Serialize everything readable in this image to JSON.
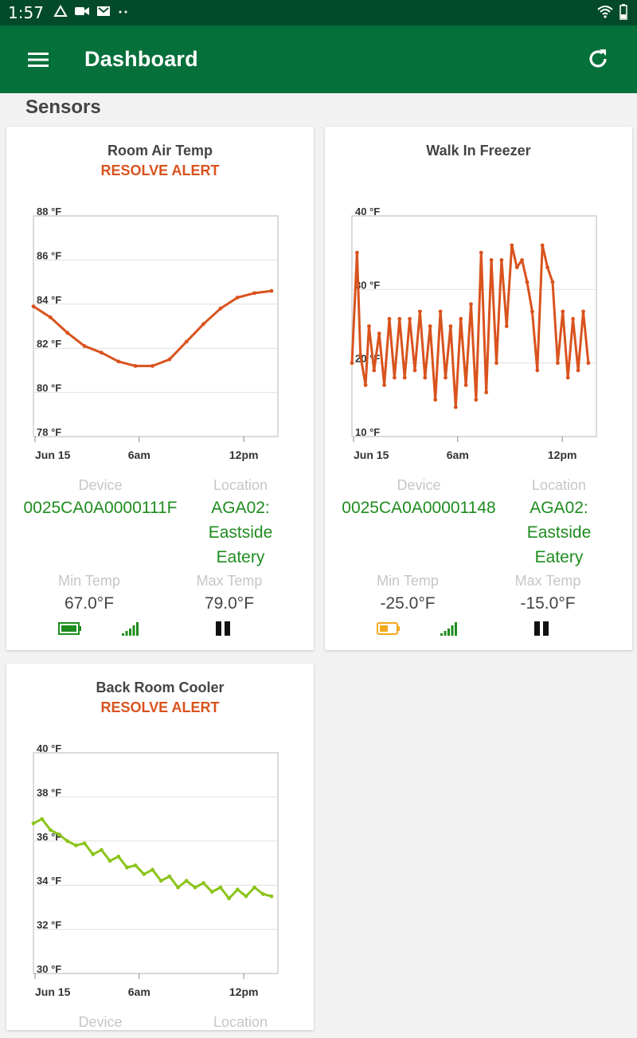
{
  "status_bar": {
    "time": "1:57"
  },
  "header": {
    "title": "Dashboard"
  },
  "section": {
    "title": "Sensors"
  },
  "labels": {
    "device": "Device",
    "location": "Location",
    "min_temp": "Min Temp",
    "max_temp": "Max Temp"
  },
  "sensors": [
    {
      "name": "Room Air Temp",
      "alert": "RESOLVE ALERT",
      "device": "0025CA0A0000111F",
      "location_lines": [
        "AGA02:",
        "Eastside",
        "Eatery"
      ],
      "min_temp": "67.0°F",
      "max_temp": "79.0°F",
      "battery": "full",
      "battery_color": "#1e8c1e"
    },
    {
      "name": "Walk In Freezer",
      "alert": "",
      "device": "0025CA0A00001148",
      "location_lines": [
        "AGA02:",
        "Eastside",
        "Eatery"
      ],
      "min_temp": "-25.0°F",
      "max_temp": "-15.0°F",
      "battery": "half",
      "battery_color": "#f2a81d"
    },
    {
      "name": "Back Room Cooler",
      "alert": "RESOLVE ALERT",
      "device": "",
      "location_lines": [],
      "min_temp": "",
      "max_temp": "",
      "battery": "",
      "battery_color": ""
    }
  ],
  "colors": {
    "status_bar": "#034a2a",
    "app_bar": "#06703a",
    "alert": "#d9531e",
    "green_value": "#1e8c1e",
    "series_orange": "#d9531e",
    "series_lime": "#8bc41a"
  },
  "chart_data": [
    {
      "type": "line",
      "title": "Room Air Temp",
      "x_ticks": [
        "Jun 15",
        "6am",
        "12pm"
      ],
      "y_ticks": [
        "88 °F",
        "86 °F",
        "84 °F",
        "82 °F",
        "80 °F",
        "78 °F"
      ],
      "ylim": [
        78,
        88
      ],
      "x_range_hours": [
        0,
        14
      ],
      "series": [
        {
          "color": "#d9531e",
          "x": [
            0,
            1,
            2,
            3,
            4,
            5,
            6,
            7,
            8,
            9,
            10,
            11,
            12,
            13,
            14
          ],
          "y": [
            83.9,
            83.4,
            82.7,
            82.1,
            81.8,
            81.4,
            81.2,
            81.2,
            81.5,
            82.3,
            83.1,
            83.8,
            84.3,
            84.5,
            84.6
          ]
        }
      ]
    },
    {
      "type": "line",
      "title": "Walk In Freezer",
      "x_ticks": [
        "Jun 15",
        "6am",
        "12pm"
      ],
      "y_ticks": [
        "40 °F",
        "30 °F",
        "20 °F",
        "10 °F"
      ],
      "ylim": [
        10,
        40
      ],
      "x_range_hours": [
        0,
        14
      ],
      "series": [
        {
          "color": "#d9531e",
          "x": [
            0,
            0.3,
            0.5,
            0.8,
            1.0,
            1.3,
            1.6,
            1.9,
            2.2,
            2.5,
            2.8,
            3.1,
            3.4,
            3.7,
            4.0,
            4.3,
            4.6,
            4.9,
            5.2,
            5.5,
            5.8,
            6.1,
            6.4,
            6.7,
            7.0,
            7.3,
            7.6,
            7.9,
            8.2,
            8.5,
            8.8,
            9.1,
            9.4,
            9.7,
            10.0,
            10.3,
            10.6,
            10.9,
            11.2,
            11.5,
            11.8,
            12.1,
            12.4,
            12.7,
            13.0,
            13.3,
            13.6,
            13.9
          ],
          "y": [
            20,
            35,
            21,
            17,
            25,
            19,
            24,
            17,
            26,
            18,
            26,
            18,
            26,
            19,
            27,
            18,
            25,
            15,
            27,
            18,
            25,
            14,
            26,
            17,
            28,
            15,
            35,
            16,
            34,
            20,
            34,
            25,
            36,
            33,
            34,
            31,
            27,
            19,
            36,
            33,
            31,
            20,
            27,
            18,
            26,
            19,
            27,
            20
          ]
        }
      ]
    },
    {
      "type": "line",
      "title": "Back Room Cooler",
      "x_ticks": [
        "Jun 15",
        "6am",
        "12pm"
      ],
      "y_ticks": [
        "40 °F",
        "38 °F",
        "36 °F",
        "34 °F",
        "32 °F",
        "30 °F"
      ],
      "ylim": [
        30,
        40
      ],
      "x_range_hours": [
        0,
        14
      ],
      "series": [
        {
          "color": "#8bc41a",
          "x": [
            0,
            0.5,
            1,
            1.5,
            2,
            2.5,
            3,
            3.5,
            4,
            4.5,
            5,
            5.5,
            6,
            6.5,
            7,
            7.5,
            8,
            8.5,
            9,
            9.5,
            10,
            10.5,
            11,
            11.5,
            12,
            12.5,
            13,
            13.5,
            14
          ],
          "y": [
            36.8,
            37.0,
            36.5,
            36.3,
            36.0,
            35.8,
            35.9,
            35.4,
            35.6,
            35.1,
            35.3,
            34.8,
            34.9,
            34.5,
            34.7,
            34.2,
            34.4,
            33.9,
            34.2,
            33.9,
            34.1,
            33.7,
            33.9,
            33.4,
            33.8,
            33.5,
            33.9,
            33.6,
            33.5
          ]
        }
      ]
    }
  ]
}
